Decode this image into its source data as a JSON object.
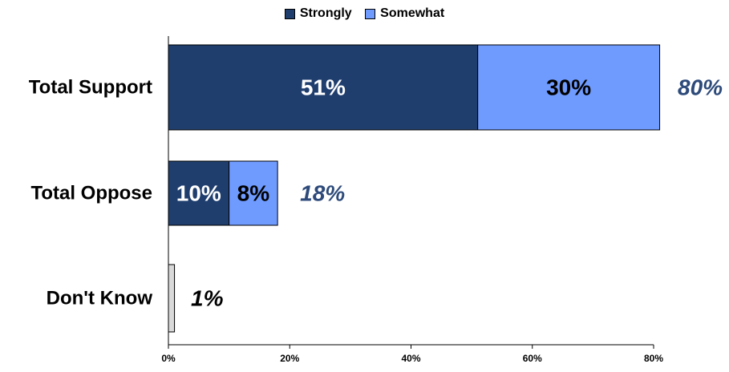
{
  "chart_data": {
    "type": "bar",
    "orientation": "horizontal",
    "stacked": true,
    "categories": [
      "Total Support",
      "Total Oppose",
      "Don't Know"
    ],
    "series": [
      {
        "name": "Strongly",
        "color": "#1f3e6e",
        "values": [
          51,
          10,
          null
        ],
        "labels": [
          "51%",
          "10%",
          ""
        ]
      },
      {
        "name": "Somewhat",
        "color": "#6f9bff",
        "values": [
          30,
          8,
          null
        ],
        "labels": [
          "30%",
          "8%",
          ""
        ]
      },
      {
        "name": "",
        "color": "#d9d9d9",
        "values": [
          null,
          null,
          1
        ],
        "labels": [
          "",
          "",
          ""
        ]
      }
    ],
    "totals": [
      80,
      18,
      1
    ],
    "total_labels": [
      "80%",
      "18%",
      "1%"
    ],
    "total_label_colors": [
      "#2d4a7a",
      "#2d4a7a",
      "#000000"
    ],
    "xlim": [
      0,
      80
    ],
    "xticks": [
      0,
      20,
      40,
      60,
      80
    ],
    "xtick_labels": [
      "0%",
      "20%",
      "40%",
      "60%",
      "80%"
    ],
    "legend_position": "top-center",
    "grid": false
  }
}
